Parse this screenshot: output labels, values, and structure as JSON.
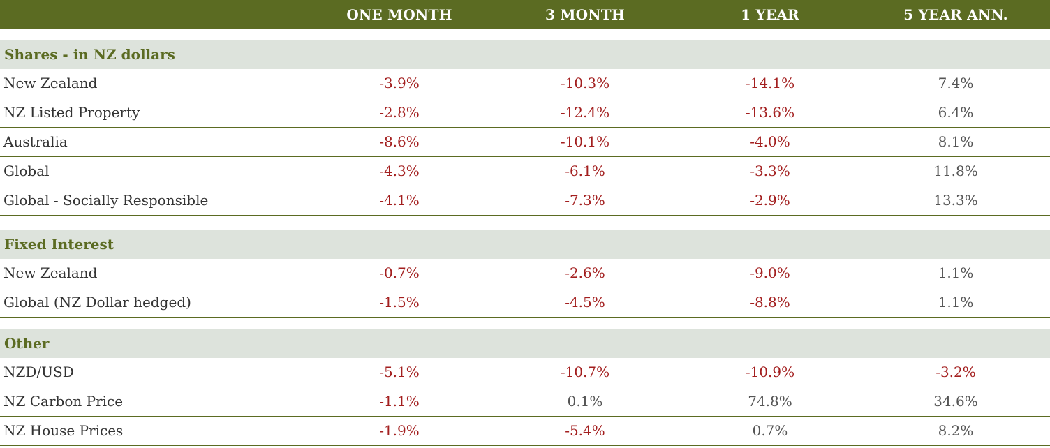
{
  "header": {
    "col1": "ONE MONTH",
    "col2": "3 MONTH",
    "col3": "1 YEAR",
    "col4": "5 YEAR ANN."
  },
  "sections": [
    {
      "title": "Shares - in NZ dollars",
      "rows": [
        {
          "label": "New Zealand",
          "v1": "-3.9%",
          "v2": "-10.3%",
          "v3": "-14.1%",
          "v4": "7.4%"
        },
        {
          "label": "NZ Listed Property",
          "v1": "-2.8%",
          "v2": "-12.4%",
          "v3": "-13.6%",
          "v4": "6.4%"
        },
        {
          "label": "Australia",
          "v1": "-8.6%",
          "v2": "-10.1%",
          "v3": "-4.0%",
          "v4": "8.1%"
        },
        {
          "label": "Global",
          "v1": "-4.3%",
          "v2": "-6.1%",
          "v3": "-3.3%",
          "v4": "11.8%"
        },
        {
          "label": "Global - Socially Responsible",
          "v1": "-4.1%",
          "v2": "-7.3%",
          "v3": "-2.9%",
          "v4": "13.3%"
        }
      ]
    },
    {
      "title": "Fixed Interest",
      "rows": [
        {
          "label": "New Zealand",
          "v1": "-0.7%",
          "v2": "-2.6%",
          "v3": "-9.0%",
          "v4": "1.1%"
        },
        {
          "label": "Global (NZ Dollar hedged)",
          "v1": "-1.5%",
          "v2": "-4.5%",
          "v3": "-8.8%",
          "v4": "1.1%"
        }
      ]
    },
    {
      "title": "Other",
      "rows": [
        {
          "label": "NZD/USD",
          "v1": "-5.1%",
          "v2": "-10.7%",
          "v3": "-10.9%",
          "v4": "-3.2%"
        },
        {
          "label": "NZ Carbon Price",
          "v1": "-1.1%",
          "v2": "0.1%",
          "v3": "74.8%",
          "v4": "34.6%"
        },
        {
          "label": "NZ House Prices",
          "v1": "-1.9%",
          "v2": "-5.4%",
          "v3": "0.7%",
          "v4": "8.2%"
        }
      ]
    }
  ],
  "colors": {
    "header_bg": "#5b6b22",
    "section_bg": "#dde3dc",
    "negative": "#a31f1f",
    "positive": "#555555"
  }
}
